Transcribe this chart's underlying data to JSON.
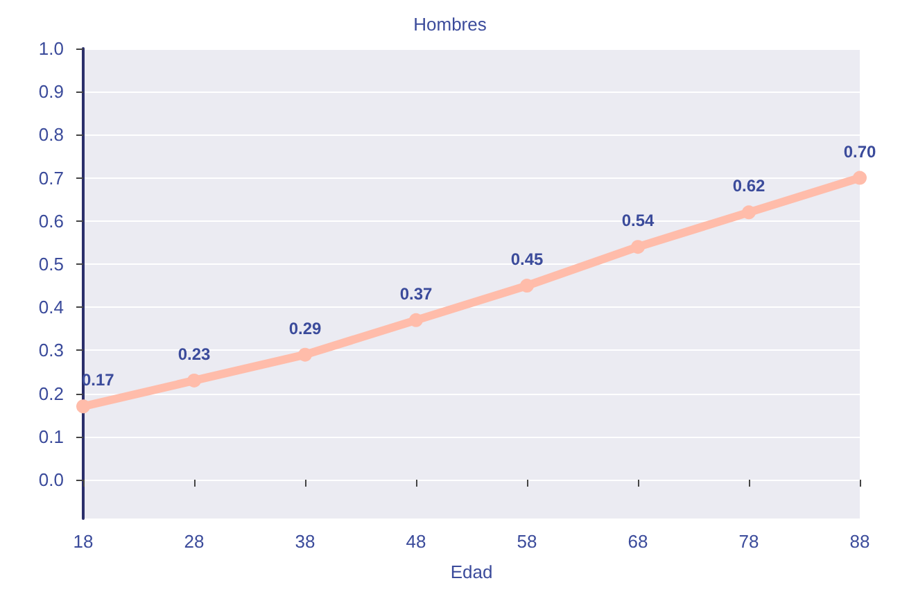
{
  "chart_data": {
    "type": "line",
    "title": "Hombres",
    "xlabel": "Edad",
    "x": [
      18,
      28,
      38,
      48,
      58,
      68,
      78,
      88
    ],
    "series": [
      {
        "color": "#ffbcaa",
        "values": [
          0.17,
          0.23,
          0.29,
          0.37,
          0.45,
          0.54,
          0.62,
          0.7
        ],
        "value_labels": [
          "0.17",
          "0.23",
          "0.29",
          "0.37",
          "0.45",
          "0.54",
          "0.62",
          "0.70"
        ]
      }
    ],
    "xlim": [
      18,
      88
    ],
    "xticks": [
      18,
      28,
      38,
      48,
      58,
      68,
      78,
      88
    ],
    "ylim": [
      -0.09,
      1.0
    ],
    "yticks": [
      {
        "value": 0,
        "label": "0.0"
      },
      0.1,
      0.2,
      0.3,
      0.4,
      0.5,
      0.6,
      0.7,
      0.8,
      0.9,
      {
        "value": 1,
        "label": "1.0"
      }
    ],
    "grid": "y",
    "marker": "circle",
    "line_style": "solid"
  }
}
